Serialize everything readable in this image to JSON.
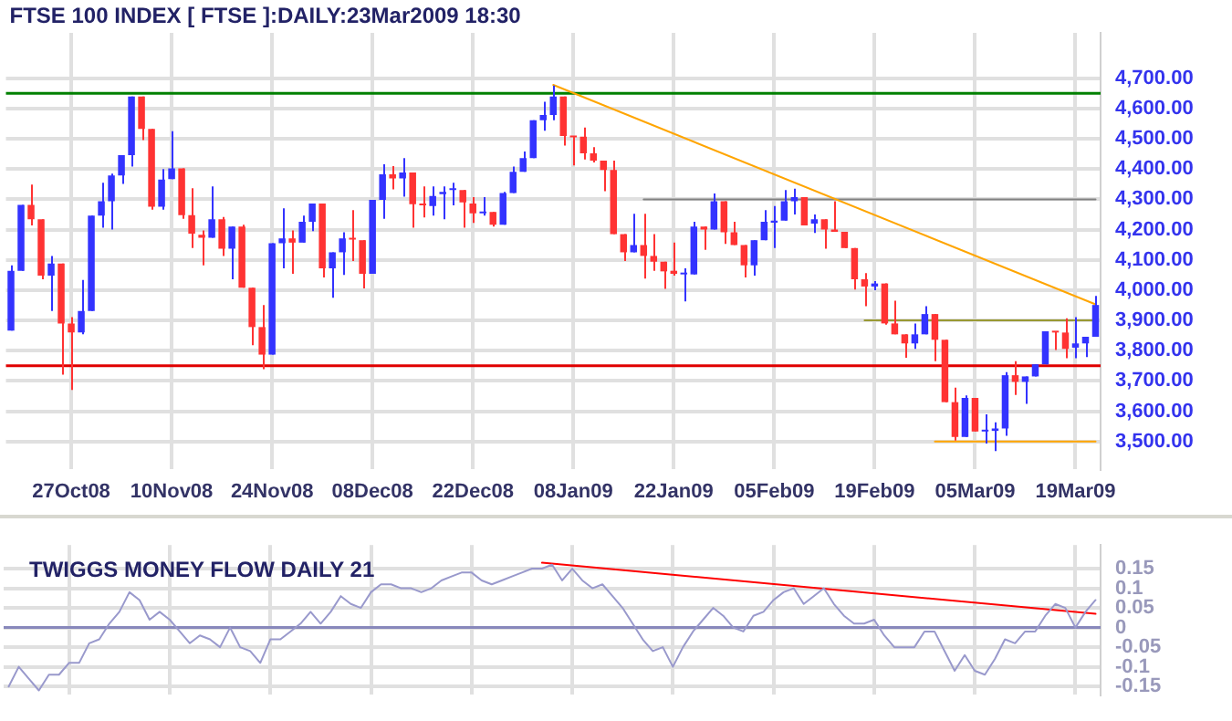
{
  "chart_data": [
    {
      "type": "candlestick",
      "title": "FTSE 100 INDEX [ FTSE ]:DAILY:23Mar2009 18:30",
      "categories": [
        null,
        null,
        null,
        null,
        null,
        null,
        "27Oct08",
        null,
        null,
        null,
        null,
        null,
        null,
        null,
        null,
        null,
        "10Nov08",
        null,
        null,
        null,
        null,
        null,
        null,
        null,
        null,
        null,
        "24Nov08",
        null,
        null,
        null,
        null,
        null,
        null,
        null,
        null,
        null,
        "08Dec08",
        null,
        null,
        null,
        null,
        null,
        null,
        null,
        null,
        null,
        "22Dec08",
        null,
        null,
        null,
        null,
        null,
        null,
        null,
        null,
        null,
        "08Jan09",
        null,
        null,
        null,
        null,
        null,
        null,
        null,
        null,
        null,
        "22Jan09",
        null,
        null,
        null,
        null,
        null,
        null,
        null,
        null,
        null,
        "05Feb09",
        null,
        null,
        null,
        null,
        null,
        null,
        null,
        null,
        null,
        "19Feb09",
        null,
        null,
        null,
        null,
        null,
        null,
        null,
        null,
        null,
        "05Mar09",
        null,
        null,
        null,
        null,
        null,
        null,
        null,
        null,
        null,
        "19Mar09",
        null,
        null
      ],
      "ohlc": [
        [
          3866,
          4082,
          3866,
          4064
        ],
        [
          4064,
          4282,
          4064,
          4282
        ],
        [
          4282,
          4349,
          4214,
          4234
        ],
        [
          4234,
          4234,
          4036,
          4048
        ],
        [
          4048,
          4113,
          3931,
          4088
        ],
        [
          4088,
          4088,
          3721,
          3890
        ],
        [
          3890,
          3911,
          3670,
          3860
        ],
        [
          3860,
          4034,
          3854,
          3931
        ],
        [
          3931,
          4246,
          3931,
          4246
        ],
        [
          4246,
          4355,
          4206,
          4294
        ],
        [
          4294,
          4385,
          4200,
          4379
        ],
        [
          4379,
          4446,
          4351,
          4446
        ],
        [
          4446,
          4640,
          4408,
          4640
        ],
        [
          4640,
          4640,
          4496,
          4533
        ],
        [
          4533,
          4533,
          4266,
          4276
        ],
        [
          4276,
          4400,
          4266,
          4365
        ],
        [
          4367,
          4525,
          4367,
          4402
        ],
        [
          4402,
          4402,
          4236,
          4248
        ],
        [
          4248,
          4337,
          4139,
          4187
        ],
        [
          4183,
          4197,
          4082,
          4173
        ],
        [
          4173,
          4343,
          4173,
          4234
        ],
        [
          4234,
          4242,
          4113,
          4137
        ],
        [
          4137,
          4210,
          4036,
          4210
        ],
        [
          4210,
          4216,
          4008,
          4008
        ],
        [
          4008,
          4008,
          3818,
          3878
        ],
        [
          3878,
          3951,
          3739,
          3787
        ],
        [
          3787,
          4155,
          3787,
          4155
        ],
        [
          4155,
          4270,
          4072,
          4171
        ],
        [
          4171,
          4197,
          4054,
          4157
        ],
        [
          4157,
          4246,
          4157,
          4226
        ],
        [
          4226,
          4286,
          4195,
          4286
        ],
        [
          4286,
          4286,
          4042,
          4072
        ],
        [
          4072,
          4125,
          3975,
          4125
        ],
        [
          4125,
          4191,
          4050,
          4171
        ],
        [
          4171,
          4264,
          4096,
          4167
        ],
        [
          4165,
          4165,
          4006,
          4054
        ],
        [
          4054,
          4298,
          4054,
          4298
        ],
        [
          4298,
          4416,
          4236,
          4383
        ],
        [
          4383,
          4410,
          4333,
          4369
        ],
        [
          4369,
          4436,
          4309,
          4389
        ],
        [
          4389,
          4389,
          4206,
          4284
        ],
        [
          4285,
          4343,
          4240,
          4280
        ],
        [
          4278,
          4343,
          4246,
          4311
        ],
        [
          4317,
          4343,
          4234,
          4325
        ],
        [
          4331,
          4355,
          4280,
          4333
        ],
        [
          4331,
          4331,
          4206,
          4290
        ],
        [
          4286,
          4307,
          4222,
          4254
        ],
        [
          4254,
          4307,
          4246,
          4258
        ],
        [
          4258,
          4258,
          4210,
          4216
        ],
        [
          4216,
          4325,
          4216,
          4321
        ],
        [
          4321,
          4408,
          4321,
          4391
        ],
        [
          4391,
          4458,
          4391,
          4436
        ],
        [
          4436,
          4561,
          4436,
          4561
        ],
        [
          4561,
          4622,
          4527,
          4579
        ],
        [
          4579,
          4676,
          4561,
          4640
        ],
        [
          4640,
          4640,
          4478,
          4509
        ],
        [
          4509,
          4509,
          4412,
          4505
        ],
        [
          4507,
          4537,
          4432,
          4452
        ],
        [
          4452,
          4472,
          4422,
          4428
        ],
        [
          4428,
          4428,
          4327,
          4397
        ],
        [
          4397,
          4428,
          4185,
          4185
        ],
        [
          4185,
          4185,
          4096,
          4125
        ],
        [
          4125,
          4252,
          4125,
          4149
        ],
        [
          4149,
          4252,
          4038,
          4113
        ],
        [
          4113,
          4185,
          4064,
          4094
        ],
        [
          4094,
          4094,
          4004,
          4062
        ],
        [
          4064,
          4157,
          4048,
          4054
        ],
        [
          4052,
          4072,
          3963,
          4056
        ],
        [
          4052,
          4226,
          4052,
          4210
        ],
        [
          4210,
          4210,
          4133,
          4200
        ],
        [
          4200,
          4319,
          4200,
          4294
        ],
        [
          4294,
          4294,
          4153,
          4191
        ],
        [
          4191,
          4226,
          4149,
          4149
        ],
        [
          4149,
          4149,
          4042,
          4082
        ],
        [
          4082,
          4165,
          4048,
          4165
        ],
        [
          4165,
          4264,
          4165,
          4226
        ],
        [
          4223,
          4278,
          4139,
          4230
        ],
        [
          4230,
          4331,
          4230,
          4294
        ],
        [
          4294,
          4335,
          4250,
          4307
        ],
        [
          4307,
          4307,
          4214,
          4214
        ],
        [
          4220,
          4250,
          4189,
          4234
        ],
        [
          4234,
          4234,
          4137,
          4200
        ],
        [
          4200,
          4294,
          4193,
          4193
        ],
        [
          4193,
          4193,
          4139,
          4139
        ],
        [
          4139,
          4139,
          4002,
          4036
        ],
        [
          4036,
          4056,
          3947,
          4012
        ],
        [
          4012,
          4030,
          4000,
          4022
        ],
        [
          4022,
          4022,
          3886,
          3890
        ],
        [
          3890,
          3965,
          3854,
          3854
        ],
        [
          3854,
          3854,
          3777,
          3824
        ],
        [
          3824,
          3890,
          3806,
          3854
        ],
        [
          3854,
          3947,
          3854,
          3921
        ],
        [
          3921,
          3921,
          3765,
          3836
        ],
        [
          3836,
          3836,
          3630,
          3630
        ],
        [
          3630,
          3678,
          3503,
          3515
        ],
        [
          3515,
          3652,
          3515,
          3644
        ],
        [
          3644,
          3644,
          3533,
          3533
        ],
        [
          3533,
          3590,
          3493,
          3539
        ],
        [
          3535,
          3563,
          3468,
          3543
        ],
        [
          3543,
          3729,
          3519,
          3719
        ],
        [
          3719,
          3765,
          3654,
          3697
        ],
        [
          3697,
          3715,
          3624,
          3715
        ],
        [
          3715,
          3755,
          3715,
          3755
        ],
        [
          3755,
          3864,
          3755,
          3864
        ],
        [
          3864,
          3864,
          3802,
          3860
        ],
        [
          3860,
          3907,
          3775,
          3806
        ],
        [
          3810,
          3911,
          3775,
          3824
        ],
        [
          3824,
          3846,
          3779,
          3846
        ],
        [
          3846,
          3981,
          3846,
          3951
        ]
      ],
      "colors": [
        "#3333ff",
        "#3333ff",
        "#ff3333",
        "#ff3333",
        "#3333ff",
        "#ff3333",
        "#ff3333",
        "#3333ff",
        "#3333ff",
        "#3333ff",
        "#3333ff",
        "#3333ff",
        "#3333ff",
        "#ff3333",
        "#ff3333",
        "#3333ff",
        "#3333ff",
        "#ff3333",
        "#ff3333",
        "#ff3333",
        "#3333ff",
        "#ff3333",
        "#3333ff",
        "#ff3333",
        "#ff3333",
        "#ff3333",
        "#3333ff",
        "#3333ff",
        "#ff3333",
        "#3333ff",
        "#3333ff",
        "#ff3333",
        "#3333ff",
        "#3333ff",
        "#ff3333",
        "#ff3333",
        "#3333ff",
        "#3333ff",
        "#ff3333",
        "#3333ff",
        "#ff3333",
        "#ff3333",
        "#3333ff",
        "#3333ff",
        "#3333ff",
        "#ff3333",
        "#ff3333",
        "#3333ff",
        "#ff3333",
        "#3333ff",
        "#3333ff",
        "#3333ff",
        "#3333ff",
        "#3333ff",
        "#3333ff",
        "#ff3333",
        "#ff3333",
        "#ff3333",
        "#ff3333",
        "#ff3333",
        "#ff3333",
        "#ff3333",
        "#3333ff",
        "#ff3333",
        "#ff3333",
        "#ff3333",
        "#ff3333",
        "#3333ff",
        "#3333ff",
        "#ff3333",
        "#3333ff",
        "#ff3333",
        "#ff3333",
        "#ff3333",
        "#3333ff",
        "#3333ff",
        "#3333ff",
        "#3333ff",
        "#3333ff",
        "#ff3333",
        "#3333ff",
        "#ff3333",
        "#ff3333",
        "#ff3333",
        "#ff3333",
        "#ff3333",
        "#3333ff",
        "#ff3333",
        "#ff3333",
        "#ff3333",
        "#3333ff",
        "#3333ff",
        "#ff3333",
        "#ff3333",
        "#ff3333",
        "#3333ff",
        "#ff3333",
        "#3333ff",
        "#3333ff",
        "#3333ff",
        "#ff3333",
        "#3333ff",
        "#3333ff",
        "#3333ff",
        "#ff3333",
        "#ff3333",
        "#3333ff",
        "#3333ff",
        "#3333ff"
      ],
      "series": [
        {
          "type": "line",
          "color": "#ffa500",
          "values": [
            null,
            null,
            null,
            null,
            null,
            null,
            null,
            null,
            null,
            null,
            null,
            null,
            null,
            null,
            null,
            null,
            null,
            null,
            null,
            null,
            null,
            null,
            null,
            null,
            null,
            null,
            null,
            null,
            null,
            null,
            null,
            null,
            null,
            null,
            null,
            null,
            null,
            null,
            null,
            null,
            null,
            null,
            null,
            null,
            null,
            null,
            null,
            null,
            null,
            null,
            null,
            null,
            null,
            null,
            4678,
            null,
            null,
            null,
            null,
            null,
            null,
            null,
            null,
            null,
            null,
            null,
            null,
            null,
            null,
            null,
            null,
            null,
            null,
            null,
            null,
            null,
            null,
            null,
            null,
            null,
            null,
            null,
            null,
            null,
            null,
            null,
            null,
            null,
            null,
            null,
            null,
            null,
            null,
            null,
            null,
            null,
            null,
            null,
            null,
            null,
            null,
            null,
            null,
            null,
            null,
            null,
            null,
            null,
            3953
          ]
        },
        {
          "type": "line",
          "color": "#808080",
          "values": [
            null,
            null,
            null,
            null,
            null,
            null,
            null,
            null,
            null,
            null,
            null,
            null,
            null,
            null,
            null,
            null,
            null,
            null,
            null,
            null,
            null,
            null,
            null,
            null,
            null,
            null,
            null,
            null,
            null,
            null,
            null,
            null,
            null,
            null,
            null,
            null,
            null,
            null,
            null,
            null,
            null,
            null,
            null,
            null,
            null,
            null,
            null,
            null,
            null,
            null,
            null,
            null,
            null,
            null,
            null,
            null,
            null,
            null,
            null,
            null,
            null,
            null,
            null,
            4300,
            null,
            null,
            null,
            null,
            null,
            null,
            null,
            null,
            null,
            null,
            null,
            null,
            null,
            null,
            null,
            null,
            null,
            null,
            null,
            null,
            null,
            null,
            null,
            null,
            null,
            null,
            null,
            null,
            null,
            null,
            null,
            null,
            null,
            null,
            null,
            null,
            null,
            null,
            null,
            null,
            null,
            null,
            null,
            null,
            4300
          ]
        },
        {
          "type": "line",
          "color": "#999933",
          "values": [
            null,
            null,
            null,
            null,
            null,
            null,
            null,
            null,
            null,
            null,
            null,
            null,
            null,
            null,
            null,
            null,
            null,
            null,
            null,
            null,
            null,
            null,
            null,
            null,
            null,
            null,
            null,
            null,
            null,
            null,
            null,
            null,
            null,
            null,
            null,
            null,
            null,
            null,
            null,
            null,
            null,
            null,
            null,
            null,
            null,
            null,
            null,
            null,
            null,
            null,
            null,
            null,
            null,
            null,
            null,
            null,
            null,
            null,
            null,
            null,
            null,
            null,
            null,
            null,
            null,
            null,
            null,
            null,
            null,
            null,
            null,
            null,
            null,
            null,
            null,
            null,
            null,
            null,
            null,
            null,
            null,
            null,
            null,
            null,
            null,
            3900,
            null,
            null,
            null,
            null,
            null,
            null,
            null,
            null,
            null,
            null,
            null,
            null,
            null,
            null,
            null,
            null,
            null,
            null,
            null,
            null,
            null,
            null,
            3900
          ]
        },
        {
          "type": "line",
          "color": "#ffa500",
          "values": [
            null,
            null,
            null,
            null,
            null,
            null,
            null,
            null,
            null,
            null,
            null,
            null,
            null,
            null,
            null,
            null,
            null,
            null,
            null,
            null,
            null,
            null,
            null,
            null,
            null,
            null,
            null,
            null,
            null,
            null,
            null,
            null,
            null,
            null,
            null,
            null,
            null,
            null,
            null,
            null,
            null,
            null,
            null,
            null,
            null,
            null,
            null,
            null,
            null,
            null,
            null,
            null,
            null,
            null,
            null,
            null,
            null,
            null,
            null,
            null,
            null,
            null,
            null,
            null,
            null,
            null,
            null,
            null,
            null,
            null,
            null,
            null,
            null,
            null,
            null,
            null,
            null,
            null,
            null,
            null,
            null,
            null,
            null,
            null,
            null,
            null,
            null,
            null,
            null,
            null,
            null,
            null,
            3500,
            null,
            null,
            null,
            null,
            null,
            null,
            null,
            null,
            null,
            null,
            null,
            null,
            null,
            null,
            null,
            3500
          ]
        }
      ],
      "ref_lines": [
        {
          "axis": "y",
          "value": 4650,
          "color": "#008000"
        },
        {
          "axis": "y",
          "value": 3750,
          "color": "#e00000"
        }
      ],
      "ylim": [
        3410,
        4850
      ],
      "yticks": [
        {
          "value": 3500,
          "label": "3,500.00"
        },
        {
          "value": 3600,
          "label": "3,600.00"
        },
        {
          "value": 3700,
          "label": "3,700.00"
        },
        {
          "value": 3800,
          "label": "3,800.00"
        },
        {
          "value": 3900,
          "label": "3,900.00"
        },
        {
          "value": 4000,
          "label": "4,000.00"
        },
        {
          "value": 4100,
          "label": "4,100.00"
        },
        {
          "value": 4200,
          "label": "4,200.00"
        },
        {
          "value": 4300,
          "label": "4,300.00"
        },
        {
          "value": 4400,
          "label": "4,400.00"
        },
        {
          "value": 4500,
          "label": "4,500.00"
        },
        {
          "value": 4600,
          "label": "4,600.00"
        },
        {
          "value": 4700,
          "label": "4,700.00"
        }
      ],
      "grid": true
    },
    {
      "type": "line",
      "title": "TWIGGS MONEY FLOW DAILY 21",
      "categories": [
        null,
        null,
        null,
        null,
        null,
        null,
        null,
        null,
        null,
        null,
        null,
        null,
        null,
        null,
        null,
        null,
        null,
        null,
        null,
        null,
        null,
        null,
        null,
        null,
        null,
        null,
        null,
        null,
        null,
        null,
        null,
        null,
        null,
        null,
        null,
        null,
        null,
        null,
        null,
        null,
        null,
        null,
        null,
        null,
        null,
        null,
        null,
        null,
        null,
        null,
        null,
        null,
        null,
        null,
        null,
        null,
        null,
        null,
        null,
        null,
        null,
        null,
        null,
        null,
        null,
        null,
        null,
        null,
        null,
        null,
        null,
        null,
        null,
        null,
        null,
        null,
        null,
        null,
        null,
        null,
        null,
        null,
        null,
        null,
        null,
        null,
        null,
        null,
        null,
        null,
        null,
        null,
        null,
        null,
        null,
        null,
        null,
        null,
        null,
        null,
        null,
        null,
        null,
        null,
        null,
        null,
        null,
        null,
        null
      ],
      "series": [
        {
          "color": "#9999cc",
          "values": [
            -0.15,
            -0.1,
            -0.13,
            -0.16,
            -0.12,
            -0.12,
            -0.09,
            -0.09,
            -0.04,
            -0.03,
            0.01,
            0.04,
            0.09,
            0.07,
            0.02,
            0.04,
            0.02,
            -0.01,
            -0.04,
            -0.02,
            -0.03,
            -0.05,
            0.0,
            -0.05,
            -0.06,
            -0.09,
            -0.03,
            -0.03,
            -0.01,
            0.01,
            0.04,
            0.01,
            0.04,
            0.08,
            0.06,
            0.05,
            0.09,
            0.11,
            0.11,
            0.1,
            0.1,
            0.09,
            0.1,
            0.12,
            0.13,
            0.14,
            0.14,
            0.12,
            0.11,
            0.12,
            0.13,
            0.14,
            0.15,
            0.15,
            0.16,
            0.12,
            0.15,
            0.12,
            0.1,
            0.11,
            0.08,
            0.05,
            0.01,
            -0.03,
            -0.06,
            -0.05,
            -0.1,
            -0.05,
            -0.01,
            0.02,
            0.05,
            0.03,
            0.0,
            -0.01,
            0.03,
            0.04,
            0.07,
            0.09,
            0.1,
            0.06,
            0.08,
            0.1,
            0.06,
            0.03,
            0.01,
            0.01,
            0.02,
            -0.02,
            -0.05,
            -0.05,
            -0.05,
            -0.01,
            -0.01,
            -0.06,
            -0.11,
            -0.07,
            -0.11,
            -0.12,
            -0.08,
            -0.03,
            -0.04,
            -0.01,
            -0.01,
            0.03,
            0.06,
            0.05,
            0.0,
            0.04,
            0.07
          ]
        },
        {
          "color": "#ff0000",
          "values": [
            null,
            null,
            null,
            null,
            null,
            null,
            null,
            null,
            null,
            null,
            null,
            null,
            null,
            null,
            null,
            null,
            null,
            null,
            null,
            null,
            null,
            null,
            null,
            null,
            null,
            null,
            null,
            null,
            null,
            null,
            null,
            null,
            null,
            null,
            null,
            null,
            null,
            null,
            null,
            null,
            null,
            null,
            null,
            null,
            null,
            null,
            null,
            null,
            null,
            null,
            null,
            null,
            null,
            0.165,
            null,
            null,
            null,
            null,
            null,
            null,
            null,
            null,
            null,
            null,
            null,
            null,
            null,
            null,
            null,
            null,
            null,
            null,
            null,
            null,
            null,
            null,
            null,
            null,
            null,
            null,
            null,
            null,
            null,
            null,
            null,
            null,
            null,
            null,
            null,
            null,
            null,
            null,
            null,
            null,
            null,
            null,
            null,
            null,
            null,
            null,
            null,
            null,
            null,
            null,
            null,
            null,
            null,
            null,
            0.035
          ]
        }
      ],
      "ref_lines": [
        {
          "axis": "y",
          "value": 0,
          "color": "#8888bb"
        }
      ],
      "ylim": [
        -0.17,
        0.21
      ],
      "yticks": [
        -0.15,
        -0.1,
        -0.05,
        0,
        0.05,
        0.1,
        0.15
      ],
      "tick_labels": "y",
      "grid": true
    }
  ]
}
